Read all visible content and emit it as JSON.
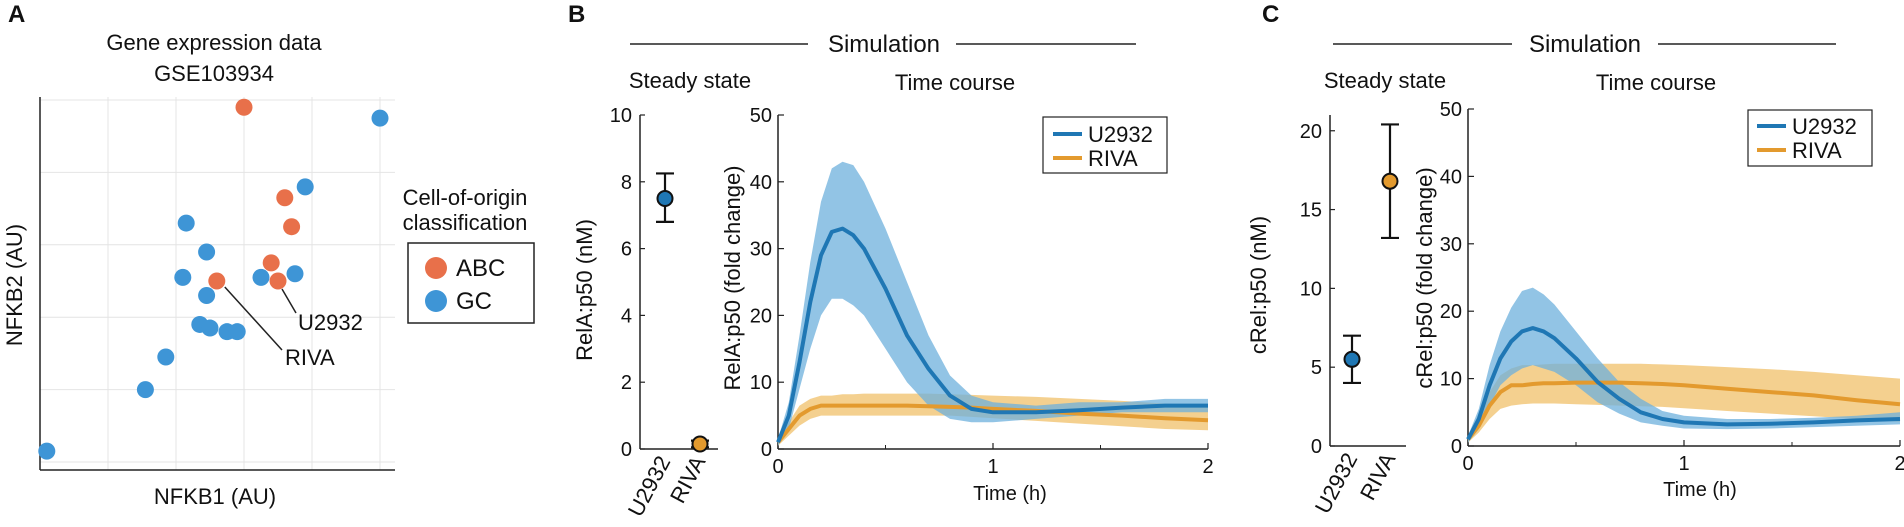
{
  "colors": {
    "abc": "#E8704A",
    "gc": "#3E95D6",
    "u2932": "#1F77B4",
    "riva": "#E39A2E",
    "u2932_band": "#6EB0DC",
    "riva_band": "#F0C06A",
    "grid": "#E4E4E4",
    "axis": "#222222"
  },
  "panels": {
    "A": {
      "letter": "A"
    },
    "B": {
      "letter": "B",
      "header": "Simulation"
    },
    "C": {
      "letter": "C",
      "header": "Simulation"
    }
  },
  "chart_data": [
    {
      "id": "A",
      "type": "scatter",
      "title": [
        "Gene expression data",
        "GSE103934"
      ],
      "xlabel": "NFKB1 (AU)",
      "ylabel": "NFKB2 (AU)",
      "xlim": [
        0,
        10
      ],
      "ylim": [
        0,
        10
      ],
      "legend": {
        "title": [
          "Cell-of-origin",
          "classification"
        ],
        "placement": "right",
        "entries": [
          "ABC",
          "GC"
        ]
      },
      "series": [
        {
          "name": "ABC",
          "points": [
            [
              6.0,
              9.8
            ],
            [
              7.2,
              7.3
            ],
            [
              7.4,
              6.5
            ],
            [
              6.8,
              5.5
            ],
            [
              5.2,
              5.0
            ],
            [
              7.0,
              5.0
            ]
          ]
        },
        {
          "name": "GC",
          "points": [
            [
              0.2,
              0.3
            ],
            [
              3.1,
              2.0
            ],
            [
              3.7,
              2.9
            ],
            [
              4.3,
              6.6
            ],
            [
              4.2,
              5.1
            ],
            [
              4.9,
              5.8
            ],
            [
              4.9,
              4.6
            ],
            [
              4.7,
              3.8
            ],
            [
              5.0,
              3.7
            ],
            [
              5.5,
              3.6
            ],
            [
              5.8,
              3.6
            ],
            [
              6.5,
              5.1
            ],
            [
              7.5,
              5.2
            ],
            [
              7.8,
              7.6
            ],
            [
              10.0,
              9.5
            ]
          ]
        }
      ],
      "annotations": [
        {
          "text": "U2932",
          "target": [
            7.0,
            5.0
          ]
        },
        {
          "text": "RIVA",
          "target": [
            5.2,
            5.0
          ]
        }
      ]
    },
    {
      "id": "B-steady",
      "type": "scatter",
      "title": "Steady state",
      "ylabel": "RelA:p50 (nM)",
      "ylim": [
        0,
        10
      ],
      "yticks": [
        0,
        2,
        4,
        6,
        8,
        10
      ],
      "categories": [
        "U2932",
        "RIVA"
      ],
      "series": [
        {
          "name": "U2932",
          "value": 7.5,
          "err_low": 6.8,
          "err_high": 8.25
        },
        {
          "name": "RIVA",
          "value": 0.15,
          "err_low": 0.05,
          "err_high": 0.25
        }
      ]
    },
    {
      "id": "B-time",
      "type": "line",
      "title": "Time course",
      "xlabel": "Time (h)",
      "ylabel": "RelA:p50 (fold change)",
      "xlim": [
        0,
        2
      ],
      "ylim": [
        0,
        50
      ],
      "xticks": [
        0,
        1,
        2
      ],
      "yticks": [
        0,
        10,
        20,
        30,
        40,
        50
      ],
      "legend": {
        "placement": "top-right",
        "entries": [
          "U2932",
          "RIVA"
        ]
      },
      "x": [
        0,
        0.05,
        0.1,
        0.15,
        0.2,
        0.25,
        0.3,
        0.35,
        0.4,
        0.5,
        0.6,
        0.7,
        0.8,
        0.9,
        1.0,
        1.2,
        1.4,
        1.6,
        1.8,
        2.0
      ],
      "series": [
        {
          "name": "U2932",
          "mean": [
            1,
            5,
            13,
            22,
            29,
            32.5,
            33,
            32,
            30,
            24,
            17,
            12,
            8,
            6,
            5.5,
            5.5,
            5.8,
            6.2,
            6.5,
            6.5
          ],
          "lower": [
            0.5,
            3,
            9,
            15,
            20,
            22.5,
            22.5,
            21.5,
            20,
            15,
            10,
            6.5,
            4.5,
            4,
            4,
            4.5,
            5,
            5.5,
            5.5,
            5.5
          ],
          "upper": [
            1.5,
            7,
            17,
            28,
            37,
            42,
            43,
            42.5,
            40,
            33,
            25,
            17,
            11,
            8,
            7,
            6.5,
            7,
            7,
            7.5,
            7.5
          ]
        },
        {
          "name": "RIVA",
          "mean": [
            1,
            3,
            5,
            6,
            6.5,
            6.5,
            6.5,
            6.5,
            6.5,
            6.5,
            6.5,
            6.4,
            6.3,
            6.2,
            6.0,
            5.7,
            5.3,
            5.0,
            4.6,
            4.3
          ],
          "lower": [
            0.5,
            2,
            3.5,
            4.5,
            5,
            5,
            5,
            5,
            5,
            5,
            5,
            5,
            5,
            4.8,
            4.6,
            4.2,
            3.8,
            3.4,
            3,
            2.8
          ],
          "upper": [
            1.5,
            4,
            6.5,
            7.5,
            8,
            8,
            8.2,
            8.2,
            8.3,
            8.3,
            8.3,
            8.3,
            8.2,
            8.1,
            8.0,
            7.8,
            7.5,
            7.2,
            6.8,
            6.5
          ]
        }
      ]
    },
    {
      "id": "C-steady",
      "type": "scatter",
      "title": "Steady state",
      "ylabel": "cRel:p50 (nM)",
      "ylim": [
        0,
        21
      ],
      "yticks": [
        0,
        5,
        10,
        15,
        20
      ],
      "categories": [
        "U2932",
        "RIVA"
      ],
      "series": [
        {
          "name": "U2932",
          "value": 5.5,
          "err_low": 4.0,
          "err_high": 7.0
        },
        {
          "name": "RIVA",
          "value": 16.8,
          "err_low": 13.2,
          "err_high": 20.4
        }
      ]
    },
    {
      "id": "C-time",
      "type": "line",
      "title": "Time course",
      "xlabel": "Time (h)",
      "ylabel": "cRel:p50 (fold change)",
      "xlim": [
        0,
        2
      ],
      "ylim": [
        0,
        50
      ],
      "xticks": [
        0,
        1,
        2
      ],
      "yticks": [
        0,
        10,
        20,
        30,
        40,
        50
      ],
      "legend": {
        "placement": "top-right",
        "entries": [
          "U2932",
          "RIVA"
        ]
      },
      "x": [
        0,
        0.05,
        0.1,
        0.15,
        0.2,
        0.25,
        0.3,
        0.35,
        0.4,
        0.5,
        0.6,
        0.7,
        0.8,
        0.9,
        1.0,
        1.2,
        1.4,
        1.6,
        1.8,
        2.0
      ],
      "series": [
        {
          "name": "U2932",
          "mean": [
            1,
            4,
            9,
            13,
            15.5,
            17,
            17.5,
            17,
            16,
            13,
            9.5,
            7,
            5,
            4,
            3.5,
            3.2,
            3.3,
            3.5,
            3.8,
            4
          ],
          "lower": [
            0.5,
            2.5,
            6,
            9,
            10.5,
            11.5,
            12,
            11.5,
            11,
            9,
            6.5,
            4.8,
            3.5,
            3,
            2.6,
            2.5,
            2.6,
            2.8,
            3,
            3.2
          ],
          "upper": [
            1.5,
            5.5,
            12,
            17,
            20.5,
            23,
            23.5,
            22.5,
            21,
            17,
            13,
            9.5,
            7,
            5.2,
            4.5,
            4,
            4,
            4.2,
            4.5,
            5
          ]
        },
        {
          "name": "RIVA",
          "mean": [
            1,
            3,
            6,
            8,
            9,
            9,
            9.2,
            9.3,
            9.3,
            9.4,
            9.4,
            9.4,
            9.3,
            9.2,
            9.0,
            8.5,
            8.0,
            7.5,
            6.8,
            6.2
          ],
          "lower": [
            0.5,
            2,
            4,
            5.5,
            6,
            6.2,
            6.3,
            6.3,
            6.3,
            6.2,
            6.1,
            6,
            5.9,
            5.8,
            5.6,
            5.2,
            4.8,
            4.4,
            4,
            3.6
          ],
          "upper": [
            1.5,
            4.5,
            8,
            10.5,
            11.5,
            12,
            12,
            12.1,
            12.2,
            12.2,
            12.2,
            12.2,
            12.2,
            12.1,
            12.0,
            11.7,
            11.4,
            11,
            10.5,
            10
          ]
        }
      ]
    }
  ]
}
